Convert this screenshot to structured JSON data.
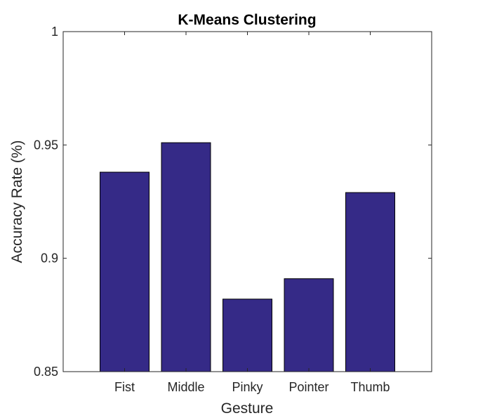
{
  "chart_data": {
    "type": "bar",
    "title": "K-Means Clustering",
    "xlabel": "Gesture",
    "ylabel": "Accuracy Rate (%)",
    "categories": [
      "Fist",
      "Middle",
      "Pinky",
      "Pointer",
      "Thumb"
    ],
    "values": [
      0.938,
      0.951,
      0.882,
      0.891,
      0.929
    ],
    "ylim": [
      0.85,
      1
    ],
    "yticks": [
      0.85,
      0.9,
      0.95,
      1
    ],
    "ytick_labels": [
      "0.85",
      "0.9",
      "0.95",
      "1"
    ],
    "bar_color": "#352a87",
    "grid": false,
    "legend": "none"
  }
}
